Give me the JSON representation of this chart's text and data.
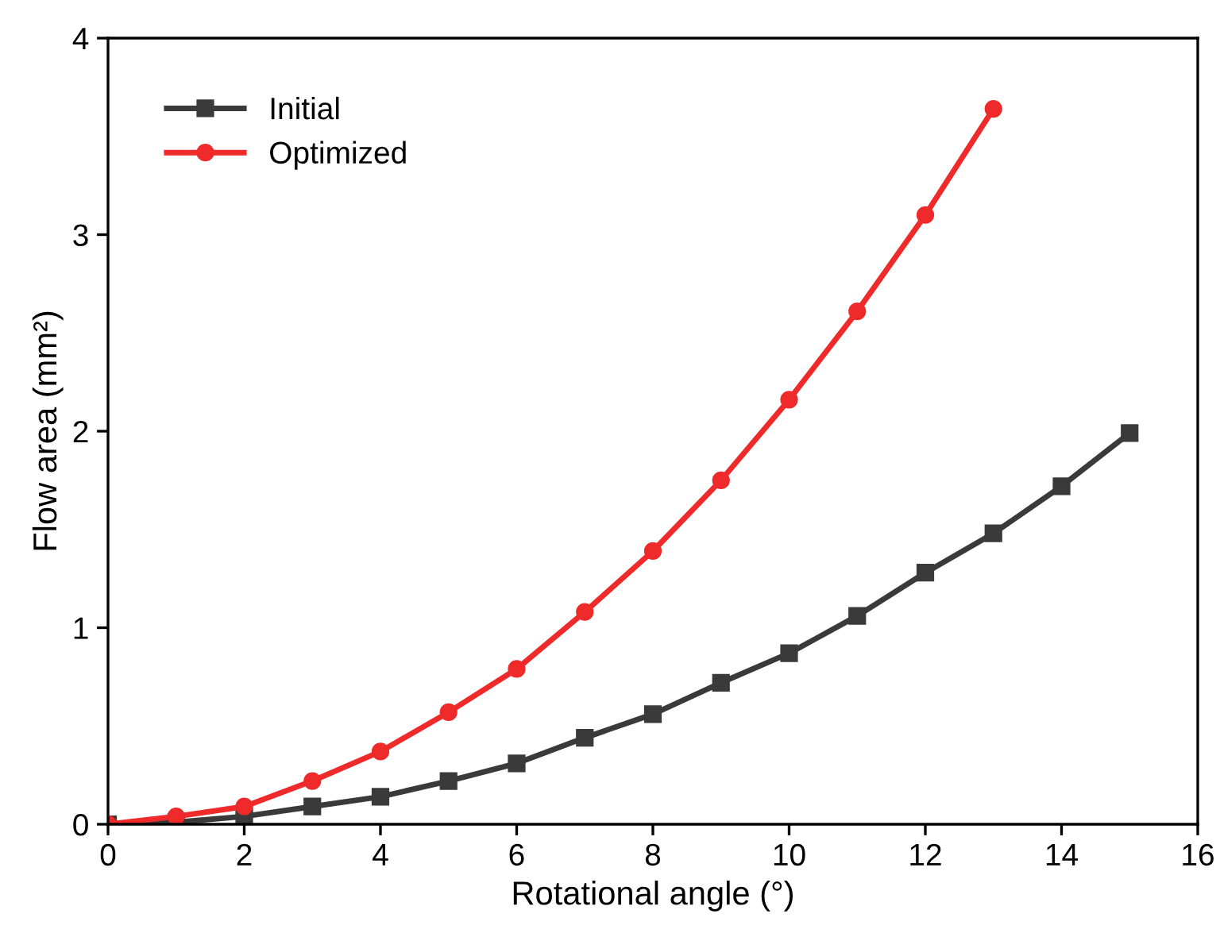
{
  "chart_data": {
    "type": "line",
    "xlabel": "Rotational angle (°)",
    "ylabel": "Flow area (mm²)",
    "xlim": [
      0,
      16
    ],
    "xticks": [
      0,
      2,
      4,
      6,
      8,
      10,
      12,
      14,
      16
    ],
    "ylim": [
      0,
      4
    ],
    "yticks": [
      0,
      1,
      2,
      3,
      4
    ],
    "grid": false,
    "legend": "top left",
    "line_style": "solid",
    "series": [
      {
        "name": "Initial",
        "color": "#3a3a3a",
        "marker": "square",
        "x": [
          0,
          1,
          2,
          3,
          4,
          5,
          6,
          7,
          8,
          9,
          10,
          11,
          12,
          13,
          14,
          15
        ],
        "values": [
          0,
          0.01,
          0.04,
          0.09,
          0.14,
          0.22,
          0.31,
          0.44,
          0.56,
          0.72,
          0.87,
          1.06,
          1.28,
          1.48,
          1.72,
          1.99
        ]
      },
      {
        "name": "Optimized",
        "color": "#ee2a2a",
        "marker": "circle",
        "x": [
          0,
          1,
          2,
          3,
          4,
          5,
          6,
          7,
          8,
          9,
          10,
          11,
          12,
          13
        ],
        "values": [
          0,
          0.04,
          0.09,
          0.22,
          0.37,
          0.57,
          0.79,
          1.08,
          1.39,
          1.75,
          2.16,
          2.61,
          3.1,
          3.64
        ]
      }
    ]
  }
}
